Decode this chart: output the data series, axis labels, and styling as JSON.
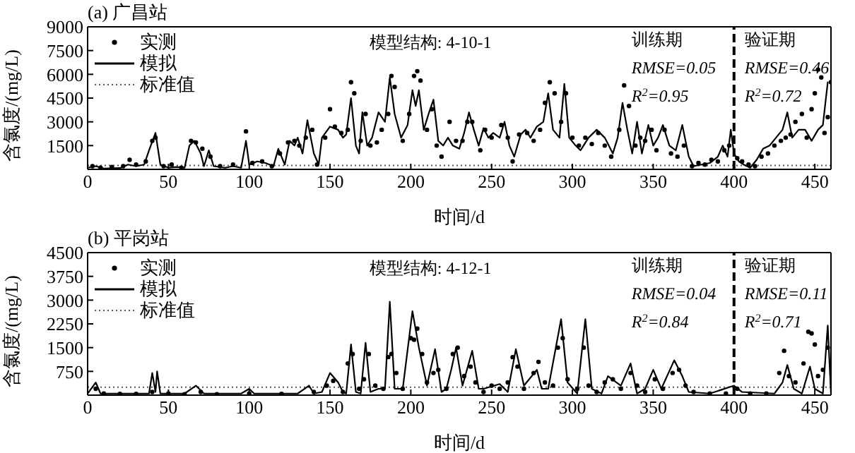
{
  "chart_data": [
    {
      "type": "line",
      "title": "(a) 广昌站",
      "xlabel": "时间/d",
      "ylabel": "含氯度/(mg/L)",
      "xlim": [
        0,
        460
      ],
      "xticks": [
        0,
        50,
        100,
        150,
        200,
        250,
        300,
        350,
        400,
        450
      ],
      "ylim": [
        0,
        9000
      ],
      "yticks": [
        1500,
        3000,
        4500,
        6000,
        7500,
        9000
      ],
      "grid": false,
      "legend": "top left",
      "series": [
        {
          "name": "实测",
          "type": "scatter",
          "marker": "circle",
          "color": "#000000",
          "x": [
            3,
            8,
            15,
            22,
            26,
            30,
            36,
            40,
            42,
            47,
            52,
            58,
            64,
            67,
            71,
            76,
            82,
            90,
            98,
            102,
            108,
            114,
            119,
            124,
            128,
            131,
            135,
            139,
            142,
            147,
            150,
            153,
            157,
            161,
            163,
            165,
            169,
            172,
            175,
            179,
            182,
            186,
            188,
            190,
            195,
            199,
            202,
            204,
            206,
            210,
            213,
            216,
            219,
            224,
            228,
            232,
            235,
            238,
            243,
            246,
            250,
            256,
            260,
            263,
            267,
            272,
            276,
            280,
            283,
            286,
            289,
            293,
            296,
            300,
            304,
            308,
            312,
            316,
            320,
            324,
            329,
            332,
            335,
            339,
            342,
            345,
            349,
            352,
            357,
            361,
            365,
            369,
            374,
            378,
            382,
            386,
            390,
            394,
            397,
            402,
            405,
            409,
            413,
            417,
            421,
            425,
            429,
            432,
            435,
            438,
            442,
            445,
            448,
            450,
            452,
            454,
            456,
            458,
            460
          ],
          "values": [
            200,
            100,
            150,
            200,
            600,
            300,
            500,
            1800,
            2000,
            200,
            300,
            100,
            1800,
            1700,
            1300,
            800,
            200,
            300,
            2400,
            400,
            500,
            200,
            1000,
            1700,
            1800,
            1500,
            2000,
            2500,
            300,
            2000,
            3800,
            2700,
            2300,
            2500,
            5500,
            4800,
            1800,
            3500,
            1500,
            1700,
            2500,
            3500,
            5900,
            5200,
            1800,
            3500,
            5900,
            6200,
            5600,
            2500,
            3800,
            1500,
            800,
            3000,
            1800,
            1800,
            3000,
            3000,
            1200,
            2500,
            2000,
            2800,
            2000,
            500,
            2200,
            2300,
            1800,
            2500,
            4200,
            5500,
            4800,
            3000,
            4800,
            2000,
            1500,
            2000,
            1600,
            2300,
            1500,
            800,
            2500,
            5300,
            4000,
            1500,
            2000,
            1800,
            2500,
            1200,
            2500,
            1000,
            800,
            1500,
            200,
            400,
            300,
            600,
            500,
            1200,
            1500,
            700,
            500,
            300,
            200,
            800,
            1000,
            1500,
            1800,
            2000,
            2200,
            3000,
            3500,
            2000,
            3800,
            4800,
            6300,
            5800,
            2300,
            3300,
            5500
          ]
        },
        {
          "name": "模拟",
          "line_style": "solid",
          "marker": "none",
          "color": "#000000",
          "x": [
            0,
            5,
            10,
            20,
            25,
            30,
            35,
            38,
            42,
            45,
            50,
            55,
            60,
            63,
            66,
            70,
            72,
            75,
            78,
            85,
            90,
            95,
            98,
            100,
            105,
            110,
            115,
            118,
            122,
            125,
            128,
            130,
            133,
            136,
            140,
            143,
            145,
            150,
            155,
            158,
            160,
            163,
            166,
            168,
            170,
            173,
            176,
            180,
            184,
            187,
            190,
            194,
            198,
            201,
            203,
            205,
            208,
            211,
            214,
            217,
            220,
            223,
            226,
            230,
            233,
            236,
            239,
            242,
            245,
            248,
            251,
            255,
            258,
            261,
            264,
            268,
            271,
            274,
            278,
            282,
            285,
            288,
            292,
            295,
            298,
            302,
            305,
            310,
            315,
            320,
            325,
            328,
            331,
            334,
            337,
            340,
            343,
            347,
            350,
            353,
            356,
            360,
            364,
            368,
            372,
            375,
            380,
            385,
            390,
            393,
            396,
            398,
            400,
            403,
            406,
            410,
            414,
            418,
            422,
            426,
            430,
            433,
            436,
            440,
            444,
            448,
            452,
            455,
            458
          ],
          "values": [
            100,
            200,
            50,
            80,
            300,
            200,
            300,
            1200,
            2300,
            300,
            100,
            150,
            100,
            1500,
            1800,
            1000,
            200,
            1200,
            200,
            100,
            200,
            100,
            1800,
            300,
            500,
            400,
            200,
            1300,
            300,
            1800,
            1500,
            2000,
            1000,
            3100,
            1000,
            300,
            2000,
            2700,
            2500,
            2000,
            2200,
            4500,
            1500,
            1000,
            3600,
            1500,
            2000,
            3600,
            3000,
            5800,
            3500,
            2000,
            2800,
            5000,
            4000,
            5000,
            2500,
            3500,
            4400,
            1800,
            1500,
            2000,
            1500,
            1300,
            2300,
            3600,
            2500,
            1500,
            2600,
            2000,
            2300,
            2000,
            3000,
            1500,
            800,
            2200,
            2500,
            2000,
            2700,
            3000,
            4800,
            2500,
            2000,
            5400,
            2000,
            1500,
            1200,
            2000,
            2500,
            2000,
            1000,
            2000,
            4200,
            2500,
            1000,
            3000,
            1000,
            2800,
            1500,
            2000,
            2800,
            1500,
            1200,
            2800,
            800,
            200,
            300,
            400,
            800,
            1500,
            800,
            2500,
            1000,
            500,
            300,
            100,
            600,
            1300,
            1500,
            2000,
            2500,
            3600,
            2000,
            2500,
            2500,
            1800,
            2500,
            2800,
            5500
          ]
        }
      ],
      "ref_lines": [
        {
          "axis": "y",
          "value": 250,
          "label": "标准值",
          "line_style": "dotted",
          "color": "#555555"
        },
        {
          "axis": "x",
          "value": 400,
          "line_style": "dashed",
          "color": "#000000"
        }
      ],
      "annotations": [
        "模型结构: 4-10-1",
        "训练期",
        "RMSE=0.05",
        "R$^{2}$=0.95",
        "验证期",
        "RMSE=0.46",
        "R$^{2}$=0.72"
      ]
    },
    {
      "type": "line",
      "title": "(b) 平岗站",
      "xlabel": "时间/d",
      "ylabel": "含氯度/(mg/L)",
      "xlim": [
        0,
        460
      ],
      "xticks": [
        0,
        50,
        100,
        150,
        200,
        250,
        300,
        350,
        400,
        450
      ],
      "ylim": [
        0,
        4500
      ],
      "yticks": [
        750,
        1500,
        2250,
        3000,
        3750,
        4500
      ],
      "grid": false,
      "legend": "top left",
      "series": [
        {
          "name": "实测",
          "type": "scatter",
          "marker": "circle",
          "color": "#000000",
          "x": [
            5,
            10,
            20,
            30,
            40,
            50,
            60,
            70,
            80,
            100,
            120,
            140,
            148,
            152,
            158,
            161,
            164,
            168,
            171,
            174,
            178,
            183,
            186,
            188,
            191,
            195,
            200,
            202,
            204,
            207,
            210,
            214,
            217,
            222,
            226,
            229,
            233,
            237,
            240,
            245,
            250,
            255,
            260,
            263,
            266,
            270,
            276,
            279,
            283,
            288,
            291,
            294,
            297,
            303,
            307,
            310,
            315,
            320,
            325,
            330,
            336,
            340,
            345,
            351,
            356,
            362,
            366,
            370,
            375,
            385,
            395,
            402,
            410,
            420,
            428,
            431,
            434,
            438,
            443,
            446,
            448,
            450,
            452,
            455,
            458
          ],
          "values": [
            200,
            50,
            40,
            40,
            100,
            50,
            30,
            100,
            30,
            50,
            40,
            100,
            300,
            450,
            100,
            1000,
            1300,
            200,
            500,
            1300,
            300,
            200,
            1200,
            1300,
            700,
            200,
            1800,
            1750,
            2100,
            1300,
            400,
            700,
            800,
            200,
            1300,
            1500,
            600,
            900,
            400,
            100,
            300,
            200,
            400,
            1200,
            900,
            200,
            700,
            1050,
            400,
            300,
            1500,
            1800,
            500,
            200,
            1500,
            300,
            100,
            400,
            500,
            200,
            700,
            300,
            100,
            500,
            200,
            700,
            800,
            300,
            100,
            50,
            50,
            200,
            50,
            50,
            700,
            1400,
            600,
            400,
            1000,
            2000,
            1950,
            1600,
            600,
            800,
            1500
          ]
        },
        {
          "name": "模拟",
          "line_style": "solid",
          "marker": "none",
          "color": "#000000",
          "x": [
            0,
            5,
            8,
            20,
            38,
            40,
            42,
            43,
            45,
            60,
            67,
            72,
            95,
            100,
            103,
            130,
            137,
            140,
            145,
            150,
            155,
            158,
            160,
            163,
            166,
            169,
            172,
            175,
            180,
            184,
            187,
            190,
            195,
            201,
            205,
            210,
            215,
            219,
            222,
            225,
            228,
            232,
            238,
            242,
            245,
            255,
            260,
            265,
            270,
            278,
            281,
            285,
            293,
            297,
            303,
            308,
            312,
            318,
            322,
            330,
            336,
            340,
            345,
            350,
            355,
            363,
            368,
            372,
            385,
            400,
            405,
            425,
            430,
            433,
            437,
            442,
            447,
            450,
            455,
            458,
            460
          ],
          "values": [
            50,
            400,
            50,
            50,
            50,
            700,
            100,
            750,
            50,
            50,
            300,
            50,
            50,
            200,
            50,
            50,
            300,
            50,
            100,
            700,
            400,
            100,
            50,
            1600,
            100,
            50,
            1650,
            100,
            200,
            200,
            2950,
            200,
            200,
            2650,
            1500,
            300,
            1450,
            100,
            200,
            800,
            1500,
            300,
            1400,
            200,
            200,
            350,
            100,
            1450,
            300,
            800,
            200,
            200,
            2400,
            400,
            50,
            2400,
            200,
            50,
            600,
            300,
            1000,
            50,
            200,
            800,
            200,
            1100,
            600,
            100,
            50,
            300,
            100,
            50,
            400,
            950,
            200,
            50,
            900,
            200,
            50,
            2200,
            50
          ]
        }
      ],
      "ref_lines": [
        {
          "axis": "y",
          "value": 250,
          "label": "标准值",
          "line_style": "dotted",
          "color": "#555555"
        },
        {
          "axis": "x",
          "value": 400,
          "line_style": "dashed",
          "color": "#000000"
        }
      ],
      "annotations": [
        "模型结构: 4-12-1",
        "训练期",
        "RMSE=0.04",
        "R$^{2}$=0.84",
        "验证期",
        "RMSE=0.11",
        "R$^{2}$=0.71"
      ]
    }
  ]
}
